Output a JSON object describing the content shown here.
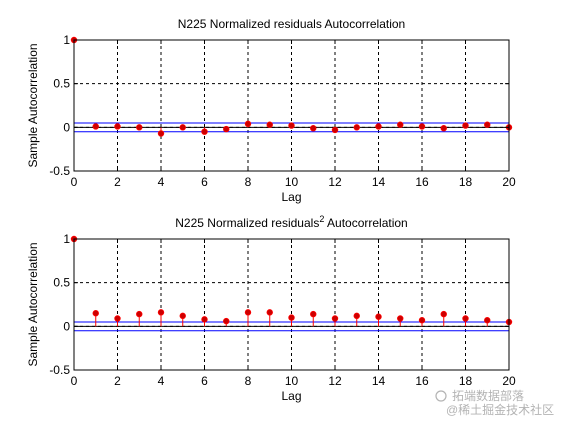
{
  "chart_data": [
    {
      "type": "stem",
      "title": "N225 Normalized residuals Autocorrelation",
      "xlabel": "Lag",
      "ylabel": "Sample Autocorrelation",
      "xlim": [
        0,
        20
      ],
      "ylim": [
        -0.5,
        1
      ],
      "xticks": [
        "0",
        "2",
        "4",
        "6",
        "8",
        "10",
        "12",
        "14",
        "16",
        "18",
        "20"
      ],
      "yticks": [
        "-0.5",
        "0",
        "0.5",
        "1"
      ],
      "grid": true,
      "bounds": [
        0.05,
        -0.05
      ],
      "x": [
        0,
        1,
        2,
        3,
        4,
        5,
        6,
        7,
        8,
        9,
        10,
        11,
        12,
        13,
        14,
        15,
        16,
        17,
        18,
        19,
        20
      ],
      "values": [
        1.0,
        0.01,
        0.01,
        0.0,
        -0.07,
        0.0,
        -0.05,
        -0.02,
        0.04,
        0.03,
        0.02,
        -0.01,
        -0.03,
        0.0,
        0.01,
        0.03,
        0.01,
        -0.01,
        0.02,
        0.03,
        0.0
      ]
    },
    {
      "type": "stem",
      "title": "N225 Normalized residuals",
      "title_sup": "2",
      "title_suffix": " Autocorrelation",
      "xlabel": "Lag",
      "ylabel": "Sample Autocorrelation",
      "xlim": [
        0,
        20
      ],
      "ylim": [
        -0.5,
        1
      ],
      "xticks": [
        "0",
        "2",
        "4",
        "6",
        "8",
        "10",
        "12",
        "14",
        "16",
        "18",
        "20"
      ],
      "yticks": [
        "-0.5",
        "0",
        "0.5",
        "1"
      ],
      "grid": true,
      "bounds": [
        0.05,
        -0.05
      ],
      "x": [
        0,
        1,
        2,
        3,
        4,
        5,
        6,
        7,
        8,
        9,
        10,
        11,
        12,
        13,
        14,
        15,
        16,
        17,
        18,
        19,
        20
      ],
      "values": [
        1.0,
        0.15,
        0.09,
        0.14,
        0.16,
        0.12,
        0.08,
        0.06,
        0.16,
        0.16,
        0.1,
        0.14,
        0.09,
        0.12,
        0.11,
        0.09,
        0.07,
        0.14,
        0.09,
        0.07,
        0.05
      ]
    }
  ],
  "colors": {
    "stem": "#ff0000",
    "marker": "#cc0000",
    "bounds": "#0000ff",
    "zero": "#000000"
  },
  "watermark": {
    "text": "拓端数据部落",
    "subtext": "@稀土掘金技术社区"
  }
}
